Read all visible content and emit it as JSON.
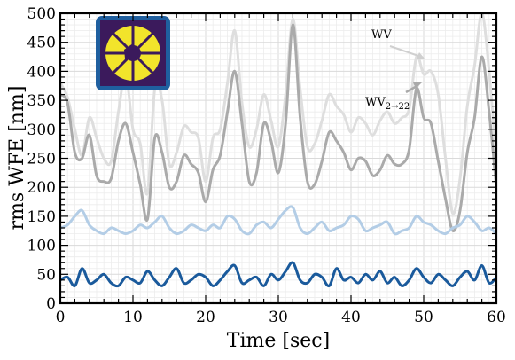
{
  "chart_data": {
    "type": "line",
    "title": "",
    "xlabel": "Time [sec]",
    "ylabel": "rms WFE [nm]",
    "xlim": [
      0,
      60
    ],
    "ylim": [
      0,
      500
    ],
    "xticks": [
      0,
      10,
      20,
      30,
      40,
      50,
      60
    ],
    "yticks": [
      0,
      50,
      100,
      150,
      200,
      250,
      300,
      350,
      400,
      450,
      500
    ],
    "grid": true,
    "annotations": [
      {
        "text": "WV",
        "points_to": [
          49.5,
          425
        ]
      },
      {
        "text": "WV",
        "subscript": "2→22",
        "points_to": [
          49.5,
          378
        ]
      }
    ],
    "inset": {
      "description": "pupil image",
      "colors": {
        "border": "#1f5f9f",
        "background": "#3b1a5c",
        "pupil": "#f2e42b"
      }
    },
    "series": [
      {
        "color": "#dedede",
        "x": [
          0,
          1,
          2,
          3,
          4,
          5,
          6,
          7,
          8,
          9,
          10,
          11,
          12,
          13,
          14,
          15,
          16,
          17,
          18,
          19,
          20,
          21,
          22,
          23,
          24,
          25,
          26,
          27,
          28,
          29,
          30,
          31,
          32,
          33,
          34,
          35,
          36,
          37,
          38,
          39,
          40,
          41,
          42,
          43,
          44,
          45,
          46,
          47,
          48,
          49,
          50,
          51,
          52,
          53,
          54,
          55,
          56,
          57,
          58,
          59,
          60
        ],
        "values": [
          380,
          355,
          300,
          255,
          320,
          285,
          250,
          245,
          330,
          395,
          300,
          275,
          190,
          370,
          350,
          240,
          260,
          305,
          295,
          285,
          210,
          285,
          300,
          380,
          470,
          345,
          270,
          300,
          360,
          315,
          270,
          360,
          490,
          370,
          270,
          275,
          315,
          360,
          340,
          325,
          295,
          320,
          310,
          290,
          315,
          330,
          310,
          320,
          335,
          425,
          395,
          400,
          360,
          250,
          155,
          215,
          340,
          410,
          500,
          400,
          245
        ]
      },
      {
        "color": "#aaaaaa",
        "x": [
          0,
          1,
          2,
          3,
          4,
          5,
          6,
          7,
          8,
          9,
          10,
          11,
          12,
          13,
          14,
          15,
          16,
          17,
          18,
          19,
          20,
          21,
          22,
          23,
          24,
          25,
          26,
          27,
          28,
          29,
          30,
          31,
          32,
          33,
          34,
          35,
          36,
          37,
          38,
          39,
          40,
          41,
          42,
          43,
          44,
          45,
          46,
          47,
          48,
          49,
          50,
          51,
          52,
          53,
          54,
          55,
          56,
          57,
          58,
          59,
          60
        ],
        "values": [
          360,
          345,
          260,
          250,
          290,
          220,
          210,
          215,
          280,
          310,
          260,
          205,
          145,
          285,
          260,
          200,
          210,
          255,
          240,
          225,
          175,
          230,
          255,
          330,
          400,
          310,
          210,
          225,
          310,
          280,
          225,
          310,
          480,
          320,
          210,
          205,
          245,
          295,
          280,
          260,
          230,
          250,
          245,
          220,
          230,
          255,
          240,
          240,
          265,
          370,
          320,
          310,
          245,
          180,
          125,
          160,
          260,
          320,
          425,
          330,
          200
        ]
      },
      {
        "color": "#b3cde6",
        "x": [
          0,
          1,
          2,
          3,
          4,
          5,
          6,
          7,
          8,
          9,
          10,
          11,
          12,
          13,
          14,
          15,
          16,
          17,
          18,
          19,
          20,
          21,
          22,
          23,
          24,
          25,
          26,
          27,
          28,
          29,
          30,
          31,
          32,
          33,
          34,
          35,
          36,
          37,
          38,
          39,
          40,
          41,
          42,
          43,
          44,
          45,
          46,
          47,
          48,
          49,
          50,
          51,
          52,
          53,
          54,
          55,
          56,
          57,
          58,
          59,
          60
        ],
        "values": [
          130,
          135,
          150,
          160,
          135,
          125,
          120,
          130,
          125,
          120,
          125,
          135,
          130,
          140,
          150,
          130,
          120,
          125,
          135,
          130,
          125,
          135,
          130,
          150,
          145,
          125,
          120,
          135,
          140,
          130,
          145,
          160,
          165,
          130,
          120,
          130,
          140,
          125,
          130,
          135,
          150,
          145,
          125,
          130,
          135,
          140,
          120,
          125,
          130,
          150,
          140,
          135,
          125,
          120,
          130,
          135,
          150,
          140,
          125,
          130,
          120
        ]
      },
      {
        "color": "#1a5a9c",
        "x": [
          0,
          1,
          2,
          3,
          4,
          5,
          6,
          7,
          8,
          9,
          10,
          11,
          12,
          13,
          14,
          15,
          16,
          17,
          18,
          19,
          20,
          21,
          22,
          23,
          24,
          25,
          26,
          27,
          28,
          29,
          30,
          31,
          32,
          33,
          34,
          35,
          36,
          37,
          38,
          39,
          40,
          41,
          42,
          43,
          44,
          45,
          46,
          47,
          48,
          49,
          50,
          51,
          52,
          53,
          54,
          55,
          56,
          57,
          58,
          59,
          60
        ],
        "values": [
          40,
          45,
          30,
          60,
          35,
          40,
          50,
          35,
          30,
          45,
          40,
          35,
          55,
          40,
          30,
          45,
          60,
          35,
          40,
          50,
          45,
          30,
          40,
          55,
          65,
          35,
          40,
          45,
          30,
          50,
          40,
          55,
          70,
          40,
          35,
          50,
          45,
          30,
          60,
          40,
          45,
          35,
          50,
          40,
          55,
          35,
          45,
          30,
          40,
          60,
          45,
          35,
          50,
          40,
          30,
          45,
          55,
          40,
          65,
          35,
          45
        ]
      }
    ]
  }
}
